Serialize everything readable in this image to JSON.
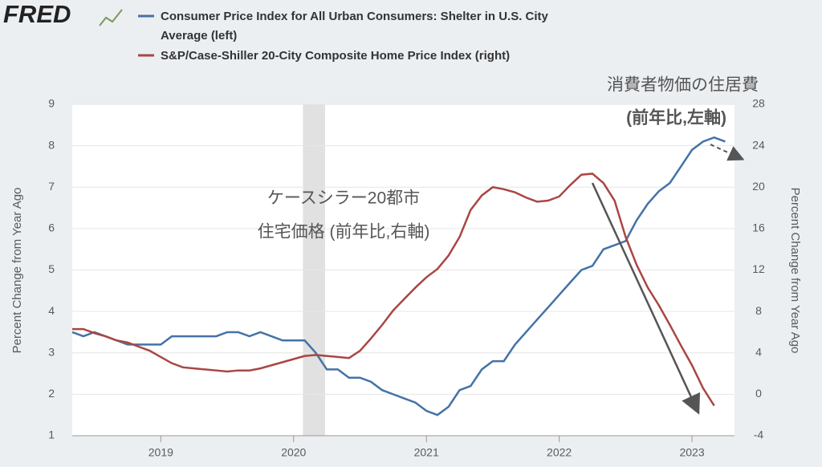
{
  "chart_data": {
    "type": "line",
    "logo": "FRED",
    "ylabel": "Percent Change from Year Ago",
    "y2label": "Percent Change from Year Ago",
    "x": [
      2018.333,
      2018.417,
      2018.5,
      2018.583,
      2018.667,
      2018.75,
      2018.833,
      2018.917,
      2019,
      2019.083,
      2019.167,
      2019.25,
      2019.333,
      2019.417,
      2019.5,
      2019.583,
      2019.667,
      2019.75,
      2019.833,
      2019.917,
      2020,
      2020.083,
      2020.167,
      2020.25,
      2020.333,
      2020.417,
      2020.5,
      2020.583,
      2020.667,
      2020.75,
      2020.833,
      2020.917,
      2021,
      2021.083,
      2021.167,
      2021.25,
      2021.333,
      2021.417,
      2021.5,
      2021.583,
      2021.667,
      2021.75,
      2021.833,
      2021.917,
      2022,
      2022.083,
      2022.167,
      2022.25,
      2022.333,
      2022.417,
      2022.5,
      2022.583,
      2022.667,
      2022.75,
      2022.833,
      2022.917,
      2023,
      2023.083,
      2023.167,
      2023.25
    ],
    "series": [
      {
        "name": "Consumer Price Index for All Urban Consumers: Shelter in U.S. City Average (left)",
        "legend_lines": [
          "Consumer Price Index for All Urban Consumers: Shelter in U.S. City",
          "Average (left)"
        ],
        "color": "#4572a7",
        "axis": "y",
        "values": [
          3.5,
          3.4,
          3.5,
          3.4,
          3.3,
          3.2,
          3.2,
          3.2,
          3.2,
          3.4,
          3.4,
          3.4,
          3.4,
          3.4,
          3.5,
          3.5,
          3.4,
          3.5,
          3.4,
          3.3,
          3.3,
          3.3,
          3.0,
          2.6,
          2.6,
          2.4,
          2.4,
          2.3,
          2.1,
          2.0,
          1.9,
          1.8,
          1.6,
          1.5,
          1.7,
          2.1,
          2.2,
          2.6,
          2.8,
          2.8,
          3.2,
          3.5,
          3.8,
          4.1,
          4.4,
          4.7,
          5.0,
          5.1,
          5.5,
          5.6,
          5.7,
          6.2,
          6.6,
          6.9,
          7.1,
          7.5,
          7.9,
          8.1,
          8.2,
          8.1
        ]
      },
      {
        "name": "S&P/Case-Shiller 20-City Composite Home Price Index (right)",
        "color": "#aa4643",
        "axis": "y2",
        "values": [
          6.3,
          6.3,
          5.9,
          5.6,
          5.2,
          5.0,
          4.6,
          4.2,
          3.6,
          3.0,
          2.6,
          2.5,
          2.4,
          2.3,
          2.2,
          2.3,
          2.3,
          2.5,
          2.8,
          3.1,
          3.4,
          3.7,
          3.8,
          3.7,
          3.6,
          3.5,
          4.2,
          5.4,
          6.7,
          8.1,
          9.2,
          10.3,
          11.3,
          12.1,
          13.4,
          15.2,
          17.8,
          19.2,
          20.0,
          19.8,
          19.5,
          19.0,
          18.6,
          18.7,
          19.1,
          20.2,
          21.2,
          21.3,
          20.4,
          18.7,
          15.2,
          12.5,
          10.3,
          8.6,
          6.7,
          4.7,
          2.8,
          0.6,
          -1.1,
          null
        ]
      }
    ],
    "recession": [
      2020.07,
      2020.237
    ],
    "xlim": [
      2018.333,
      2023.32
    ],
    "xticks": [
      2019,
      2020,
      2021,
      2022,
      2023
    ],
    "ylim": [
      1,
      9
    ],
    "yticks": [
      1,
      2,
      3,
      4,
      5,
      6,
      7,
      8,
      9
    ],
    "y2lim": [
      -4,
      28
    ],
    "y2ticks": [
      -4,
      0,
      4,
      8,
      12,
      16,
      20,
      24,
      28
    ],
    "grid": true,
    "annotations": [
      "消費者物価の住居費",
      "(前年比,左軸)",
      "ケースシラー20都市",
      "住宅価格 (前年比,右軸)"
    ]
  }
}
